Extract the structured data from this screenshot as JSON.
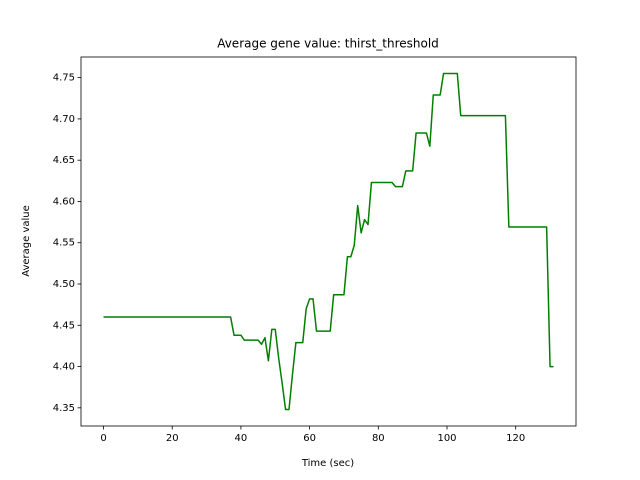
{
  "chart_data": {
    "type": "line",
    "title": "Average gene value: thirst_threshold",
    "x_label": "Time (sec)",
    "y_label": "Average value",
    "x": [
      0,
      37,
      38,
      40,
      41,
      45,
      46,
      47,
      48,
      49,
      50,
      51,
      52,
      53,
      54,
      55,
      56,
      58,
      59,
      60,
      61,
      62,
      66,
      67,
      70,
      71,
      72,
      73,
      74,
      75,
      76,
      77,
      78,
      84,
      85,
      87,
      88,
      90,
      91,
      94,
      95,
      96,
      98,
      99,
      103,
      104,
      117,
      118,
      129,
      130,
      131
    ],
    "series": [
      {
        "name": "thirst_threshold",
        "color": "#008000",
        "values": [
          4.46,
          4.46,
          4.438,
          4.438,
          4.432,
          4.432,
          4.427,
          4.435,
          4.407,
          4.445,
          4.445,
          4.41,
          4.38,
          4.348,
          4.348,
          4.39,
          4.429,
          4.429,
          4.47,
          4.482,
          4.482,
          4.443,
          4.443,
          4.487,
          4.487,
          4.533,
          4.533,
          4.547,
          4.595,
          4.562,
          4.578,
          4.572,
          4.623,
          4.623,
          4.618,
          4.618,
          4.637,
          4.637,
          4.683,
          4.683,
          4.667,
          4.729,
          4.729,
          4.755,
          4.755,
          4.704,
          4.704,
          4.569,
          4.569,
          4.4,
          4.4
        ]
      }
    ],
    "xlim": [
      -6.55,
      137.55
    ],
    "xticks": [
      0,
      20,
      40,
      60,
      80,
      100,
      120
    ],
    "ylim": [
      4.328,
      4.775
    ],
    "yticks": [
      4.35,
      {
        "value": 4.4,
        "label": "4.40"
      },
      4.45,
      {
        "value": 4.5,
        "label": "4.50"
      },
      4.55,
      {
        "value": 4.6,
        "label": "4.60"
      },
      4.65,
      {
        "value": 4.7,
        "label": "4.70"
      },
      4.75
    ],
    "grid": false
  }
}
